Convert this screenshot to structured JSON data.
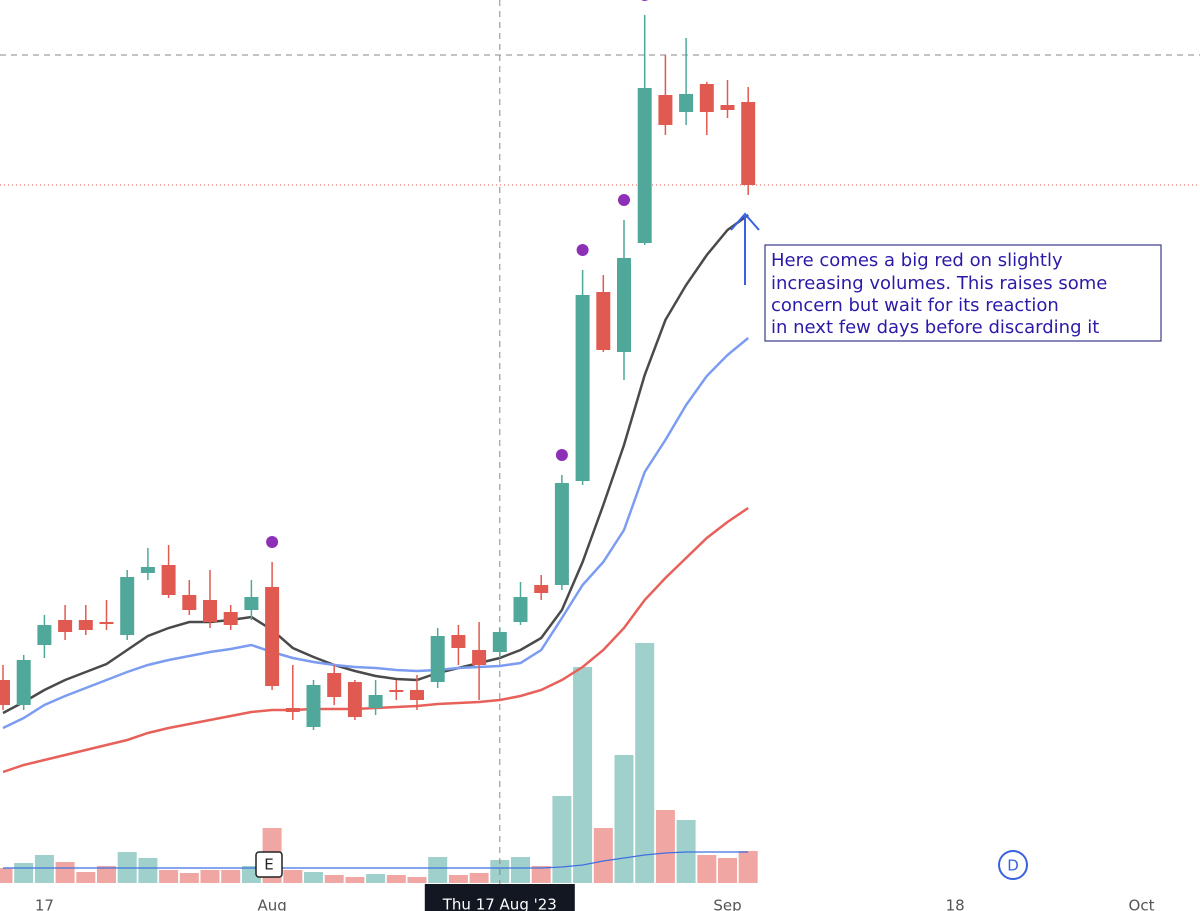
{
  "chart_data": {
    "type": "candlestick",
    "open": [
      205,
      180,
      240,
      265,
      265,
      263,
      250,
      312,
      320,
      290,
      285,
      273,
      275,
      298,
      177,
      158,
      212,
      203,
      177,
      195,
      195,
      203,
      250,
      235,
      233,
      263,
      300,
      300,
      404,
      593,
      533,
      642,
      790,
      773,
      801,
      780,
      783
    ],
    "high": [
      220,
      230,
      270,
      280,
      280,
      285,
      315,
      337,
      340,
      305,
      315,
      280,
      305,
      323,
      220,
      205,
      220,
      205,
      205,
      205,
      210,
      257,
      260,
      263,
      257,
      303,
      310,
      410,
      615,
      610,
      665,
      870,
      830,
      847,
      803,
      805,
      798
    ],
    "low": [
      175,
      175,
      227,
      245,
      250,
      255,
      245,
      305,
      287,
      270,
      257,
      255,
      265,
      195,
      165,
      155,
      180,
      165,
      170,
      185,
      175,
      197,
      220,
      185,
      227,
      260,
      285,
      295,
      400,
      533,
      505,
      640,
      750,
      760,
      750,
      767,
      690
    ],
    "close": [
      180,
      225,
      260,
      253,
      255,
      261,
      308,
      318,
      290,
      275,
      263,
      260,
      288,
      199,
      173,
      200,
      188,
      168,
      190,
      193,
      185,
      249,
      237,
      220,
      253,
      288,
      292,
      402,
      590,
      535,
      627,
      797,
      760,
      791,
      773,
      775,
      700
    ],
    "volume": [
      15,
      20,
      28,
      21,
      11,
      17,
      31,
      25,
      13,
      10,
      13,
      13,
      17,
      55,
      13,
      11,
      8,
      6,
      9,
      8,
      6,
      26,
      8,
      10,
      23,
      26,
      17,
      87,
      216,
      55,
      128,
      240,
      73,
      63,
      28,
      25,
      32
    ],
    "volume_ma": [
      15,
      15,
      15,
      15,
      15,
      15,
      15,
      15,
      15,
      15,
      15,
      15,
      15,
      15,
      15,
      15,
      15,
      15,
      15,
      15,
      15,
      15,
      15,
      15,
      15,
      15,
      15,
      16,
      18,
      22,
      25,
      28,
      30,
      31,
      31,
      31,
      31
    ],
    "moving_averages": [
      {
        "color": "#4a4a4a",
        "values": [
          172,
          183,
          195,
          205,
          213,
          221,
          235,
          249,
          257,
          263,
          263,
          265,
          268,
          255,
          237,
          228,
          220,
          214,
          209,
          206,
          205,
          212,
          217,
          222,
          227,
          235,
          247,
          275,
          323,
          380,
          440,
          510,
          565,
          600,
          630,
          655,
          670
        ]
      },
      {
        "color": "#7b9cf0",
        "values": [
          157,
          167,
          180,
          189,
          197,
          205,
          213,
          220,
          225,
          229,
          233,
          236,
          240,
          233,
          227,
          223,
          220,
          218,
          217,
          215,
          214,
          215,
          217,
          218,
          219,
          222,
          235,
          267,
          300,
          323,
          355,
          413,
          445,
          480,
          509,
          530,
          547
        ]
      },
      {
        "color": "#e8605a",
        "values": [
          113,
          120,
          125,
          130,
          135,
          140,
          145,
          152,
          157,
          161,
          165,
          169,
          173,
          175,
          175,
          176,
          176,
          176,
          177,
          178,
          179,
          181,
          182,
          183,
          185,
          189,
          195,
          205,
          218,
          235,
          257,
          285,
          307,
          327,
          347,
          363,
          377
        ]
      }
    ],
    "signal_indices": [
      13,
      27,
      28,
      30,
      31
    ],
    "up_color": "#4fa89a",
    "down_color": "#e15a51",
    "volume_up_color": "#9fd0cb",
    "volume_down_color": "#f0a7a3",
    "volume_ma_color": "#3f6fe0",
    "ylim": [
      0,
      885
    ],
    "y2lim": [
      0,
      300
    ],
    "xticks": [
      {
        "value": 2,
        "label": "17"
      },
      {
        "value": 13,
        "label": "Aug"
      },
      {
        "value": 35,
        "label": "Sep"
      },
      {
        "value": 46,
        "label": "18"
      },
      {
        "value": 55,
        "label": "Oct"
      }
    ],
    "crosshair": {
      "value": 24,
      "label": "Thu 17 Aug '23"
    },
    "earnings_label": "E",
    "dividend_label": "D",
    "annotation": [
      "Here comes a big red on slightly",
      "increasing volumes. This raises some",
      "concern but wait for its reaction",
      "in next few days before discarding it"
    ]
  }
}
